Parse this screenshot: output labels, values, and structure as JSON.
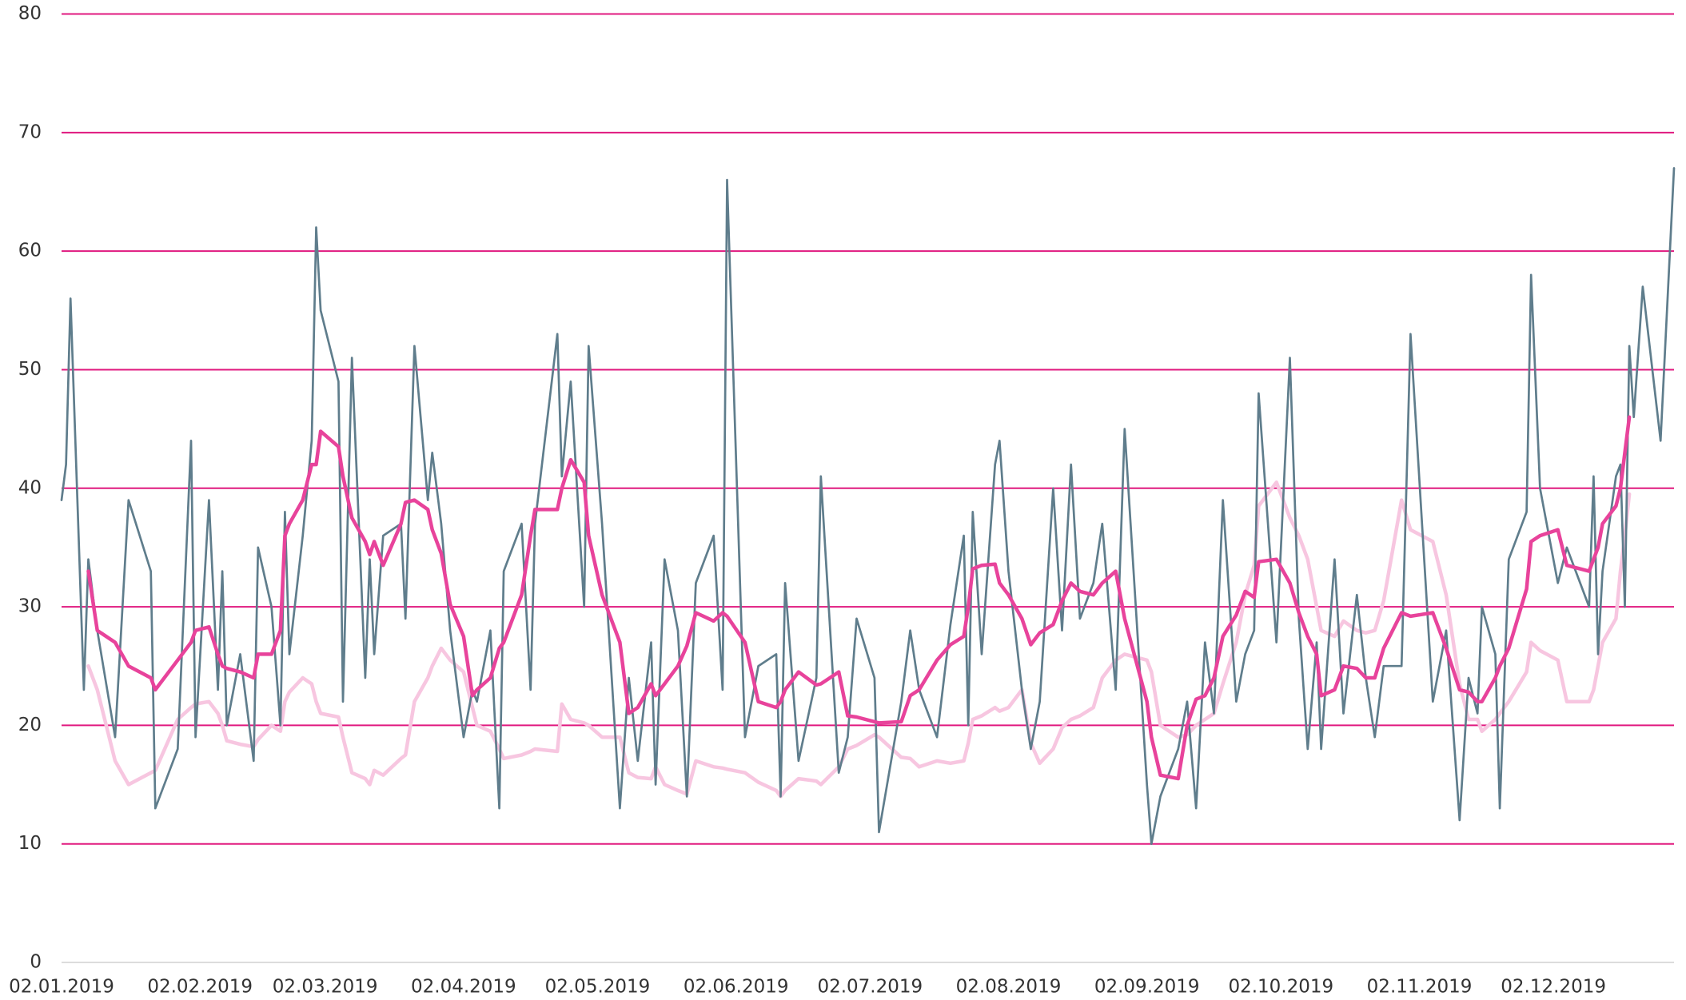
{
  "chart_data": {
    "type": "line",
    "x": [
      "2019-01-02",
      "2019-01-03",
      "2019-01-04",
      "2019-01-07",
      "2019-01-08",
      "2019-01-10",
      "2019-01-14",
      "2019-01-17",
      "2019-01-22",
      "2019-01-23",
      "2019-01-28",
      "2019-01-31",
      "2019-02-01",
      "2019-02-04",
      "2019-02-06",
      "2019-02-07",
      "2019-02-08",
      "2019-02-11",
      "2019-02-14",
      "2019-02-15",
      "2019-02-18",
      "2019-02-20",
      "2019-02-21",
      "2019-02-22",
      "2019-02-25",
      "2019-02-27",
      "2019-02-28",
      "2019-03-01",
      "2019-03-05",
      "2019-03-06",
      "2019-03-08",
      "2019-03-11",
      "2019-03-12",
      "2019-03-13",
      "2019-03-15",
      "2019-03-19",
      "2019-03-20",
      "2019-03-22",
      "2019-03-25",
      "2019-03-26",
      "2019-03-28",
      "2019-03-30",
      "2019-04-02",
      "2019-04-04",
      "2019-04-05",
      "2019-04-08",
      "2019-04-10",
      "2019-04-11",
      "2019-04-15",
      "2019-04-17",
      "2019-04-18",
      "2019-04-23",
      "2019-04-24",
      "2019-04-26",
      "2019-04-29",
      "2019-04-30",
      "2019-05-03",
      "2019-05-07",
      "2019-05-09",
      "2019-05-11",
      "2019-05-14",
      "2019-05-15",
      "2019-05-17",
      "2019-05-20",
      "2019-05-22",
      "2019-05-24",
      "2019-05-28",
      "2019-05-30",
      "2019-05-31",
      "2019-06-04",
      "2019-06-07",
      "2019-06-11",
      "2019-06-12",
      "2019-06-13",
      "2019-06-16",
      "2019-06-20",
      "2019-06-21",
      "2019-06-25",
      "2019-06-27",
      "2019-06-29",
      "2019-07-03",
      "2019-07-04",
      "2019-07-09",
      "2019-07-11",
      "2019-07-13",
      "2019-07-17",
      "2019-07-20",
      "2019-07-23",
      "2019-07-24",
      "2019-07-25",
      "2019-07-27",
      "2019-07-30",
      "2019-07-31",
      "2019-08-02",
      "2019-08-05",
      "2019-08-07",
      "2019-08-09",
      "2019-08-12",
      "2019-08-14",
      "2019-08-16",
      "2019-08-18",
      "2019-08-21",
      "2019-08-23",
      "2019-08-26",
      "2019-08-28",
      "2019-09-02",
      "2019-09-03",
      "2019-09-05",
      "2019-09-09",
      "2019-09-11",
      "2019-09-13",
      "2019-09-15",
      "2019-09-17",
      "2019-09-19",
      "2019-09-22",
      "2019-09-24",
      "2019-09-26",
      "2019-09-27",
      "2019-10-01",
      "2019-10-04",
      "2019-10-06",
      "2019-10-08",
      "2019-10-10",
      "2019-10-11",
      "2019-10-14",
      "2019-10-16",
      "2019-10-19",
      "2019-10-21",
      "2019-10-23",
      "2019-10-25",
      "2019-10-29",
      "2019-10-31",
      "2019-11-05",
      "2019-11-08",
      "2019-11-11",
      "2019-11-13",
      "2019-11-15",
      "2019-11-16",
      "2019-11-19",
      "2019-11-20",
      "2019-11-22",
      "2019-11-26",
      "2019-11-27",
      "2019-11-29",
      "2019-12-03",
      "2019-12-05",
      "2019-12-10",
      "2019-12-11",
      "2019-12-12",
      "2019-12-13",
      "2019-12-16",
      "2019-12-17",
      "2019-12-18",
      "2019-12-19",
      "2019-12-20",
      "2019-12-22",
      "2019-12-26",
      "2019-12-29"
    ],
    "series": [
      {
        "color": "#f7c6e0",
        "width": 4.5,
        "values": [
          null,
          null,
          null,
          null,
          25,
          23,
          17,
          15,
          16,
          16.2,
          20.5,
          21.5,
          21.8,
          22,
          21,
          20,
          18.7,
          18.4,
          18.2,
          18.8,
          20,
          19.5,
          22,
          22.8,
          24,
          23.5,
          22,
          21,
          20.7,
          19,
          16,
          15.5,
          15,
          16.2,
          15.8,
          17.2,
          17.5,
          22,
          24,
          25,
          26.5,
          25.5,
          24.5,
          21.5,
          20,
          19.5,
          18,
          17.2,
          17.5,
          17.8,
          18,
          17.8,
          21.8,
          20.5,
          20.2,
          20,
          19,
          19,
          16,
          15.6,
          15.5,
          16.5,
          15,
          14.5,
          14.2,
          17,
          16.5,
          16.4,
          16.3,
          16,
          15.2,
          14.5,
          14,
          14.5,
          15.5,
          15.3,
          15,
          16.5,
          18,
          18.3,
          19.2,
          19,
          17.3,
          17.2,
          16.5,
          17,
          16.8,
          17,
          18.5,
          20.5,
          20.8,
          21.5,
          21.2,
          21.5,
          23,
          18.5,
          16.8,
          18,
          19.8,
          20.5,
          20.8,
          21.5,
          24,
          25.5,
          26,
          25.5,
          24.5,
          20,
          19,
          19.2,
          20,
          20.5,
          21,
          23.5,
          27,
          31,
          33.5,
          38.5,
          40.5,
          37.5,
          36,
          34,
          30,
          28,
          27.5,
          28.8,
          28,
          27.8,
          28,
          30.5,
          39,
          36.5,
          35.5,
          31,
          23.5,
          20.5,
          20.5,
          19.5,
          20.5,
          21,
          22,
          24.5,
          27,
          26.3,
          25.5,
          22,
          22,
          23,
          25,
          27,
          29,
          33,
          36,
          39.5,
          null,
          null,
          null,
          null
        ]
      },
      {
        "color": "#5f7d8c",
        "width": 2.7,
        "values": [
          39,
          42,
          56,
          23,
          34,
          28,
          19,
          39,
          33,
          13,
          18,
          44,
          19,
          39,
          23,
          33,
          20,
          26,
          17,
          35,
          30,
          20,
          38,
          26,
          36,
          44,
          62,
          55,
          49,
          22,
          51,
          24,
          34,
          26,
          36,
          37,
          29,
          52,
          39,
          43,
          37,
          28,
          19,
          23,
          22,
          28,
          13,
          33,
          37,
          23,
          37,
          53,
          41,
          49,
          30,
          52,
          37,
          13,
          24,
          17,
          27,
          15,
          34,
          28,
          14,
          32,
          36,
          23,
          66,
          19,
          25,
          26,
          14,
          32,
          17,
          24,
          41,
          16,
          19,
          29,
          24,
          11,
          22,
          28,
          23,
          19,
          28.5,
          36,
          20,
          38,
          26,
          42,
          44,
          33,
          23,
          18,
          22,
          40,
          28,
          42,
          29,
          32,
          37,
          23,
          45,
          15,
          10,
          14,
          18,
          22,
          13,
          27,
          21,
          39,
          22,
          26,
          28,
          48,
          27,
          51,
          29,
          18,
          27,
          18,
          34,
          21,
          31,
          24,
          19,
          25,
          25,
          53,
          22,
          28,
          12,
          24,
          21,
          30,
          26,
          13,
          34,
          38,
          58,
          40,
          32,
          35,
          30,
          41,
          26,
          33,
          41,
          42,
          30,
          52,
          46,
          57,
          44,
          67
        ]
      },
      {
        "color": "#e8439b",
        "width": 4.5,
        "values": [
          null,
          null,
          null,
          null,
          33,
          28,
          27,
          25,
          24,
          23,
          25.5,
          27,
          28,
          28.3,
          26,
          25,
          24.8,
          24.5,
          24,
          26,
          26,
          28,
          36,
          37,
          39,
          42,
          42,
          44.8,
          43.5,
          41,
          37.5,
          35.5,
          34.4,
          35.5,
          33.5,
          37,
          38.8,
          39,
          38.2,
          36.5,
          34.5,
          30.2,
          27.5,
          22.5,
          23,
          24,
          26.5,
          27,
          31,
          36,
          38.2,
          38.2,
          40,
          42.4,
          40.5,
          36,
          31,
          27,
          21,
          21.5,
          23.5,
          22.5,
          23.5,
          25,
          26.7,
          29.5,
          28.8,
          29.5,
          29.2,
          27,
          22,
          21.5,
          22,
          23,
          24.5,
          23.4,
          23.5,
          24.5,
          20.8,
          20.7,
          20.3,
          20.2,
          20.3,
          22.5,
          23,
          25.5,
          26.8,
          27.5,
          30,
          33.2,
          33.5,
          33.6,
          32,
          31,
          29,
          26.8,
          27.8,
          28.5,
          30.5,
          32,
          31.3,
          31,
          32,
          33,
          29,
          22,
          19,
          15.8,
          15.5,
          20,
          22.2,
          22.5,
          24,
          27.5,
          29.3,
          31.3,
          30.8,
          33.8,
          34,
          32,
          29.5,
          27.5,
          26,
          22.5,
          23,
          25,
          24.8,
          24,
          24,
          26.5,
          29.5,
          29.2,
          29.5,
          26.5,
          23,
          22.8,
          22,
          22,
          24,
          25,
          26.5,
          31.5,
          35.5,
          36,
          36.5,
          33.5,
          33,
          34,
          35,
          37,
          38.5,
          40,
          43,
          46,
          null,
          null,
          null,
          null
        ]
      }
    ],
    "xlim": [
      "2019-01-02",
      "2019-12-29"
    ],
    "xticks": [
      {
        "value": "2019-01-02",
        "label": "02.01.2019"
      },
      {
        "value": "2019-02-02",
        "label": "02.02.2019"
      },
      {
        "value": "2019-03-02",
        "label": "02.03.2019"
      },
      {
        "value": "2019-04-02",
        "label": "02.04.2019"
      },
      {
        "value": "2019-05-02",
        "label": "02.05.2019"
      },
      {
        "value": "2019-06-02",
        "label": "02.06.2019"
      },
      {
        "value": "2019-07-02",
        "label": "02.07.2019"
      },
      {
        "value": "2019-08-02",
        "label": "02.08.2019"
      },
      {
        "value": "2019-09-02",
        "label": "02.09.2019"
      },
      {
        "value": "2019-10-02",
        "label": "02.10.2019"
      },
      {
        "value": "2019-11-02",
        "label": "02.11.2019"
      },
      {
        "value": "2019-12-02",
        "label": "02.12.2019"
      }
    ],
    "ylim": [
      0,
      80
    ],
    "yticks": [
      0,
      10,
      20,
      30,
      40,
      50,
      60,
      70,
      80
    ],
    "grid": true,
    "grid_color": "#e0197f"
  }
}
